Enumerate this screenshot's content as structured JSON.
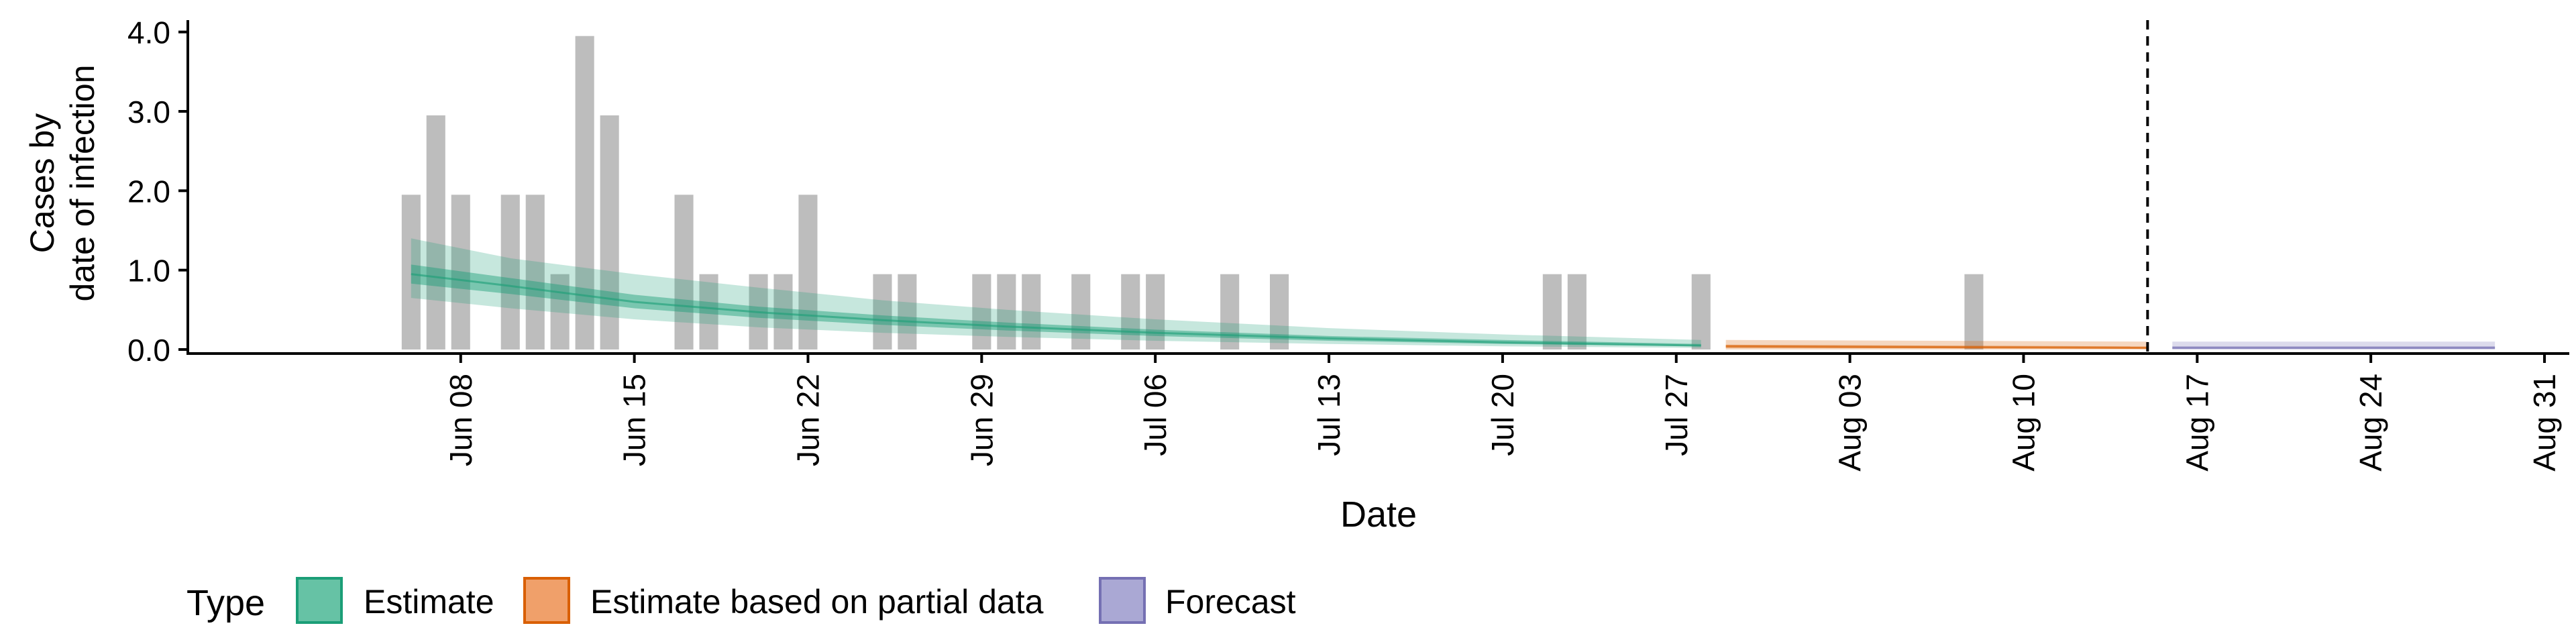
{
  "chart_data": {
    "type": "bar",
    "xlabel": "Date",
    "ylabel_lines": [
      "Cases by",
      "date of infection"
    ],
    "ylim": [
      0,
      4.2
    ],
    "yticks": [
      0,
      1,
      2,
      3,
      4
    ],
    "ytick_labels": [
      "0.0",
      "1.0",
      "2.0",
      "3.0",
      "4.0"
    ],
    "xlim": [
      "2020-05-28",
      "2020-09-01"
    ],
    "xticks": [
      "2020-06-08",
      "2020-06-15",
      "2020-06-22",
      "2020-06-29",
      "2020-07-06",
      "2020-07-13",
      "2020-07-20",
      "2020-07-27",
      "2020-08-03",
      "2020-08-10",
      "2020-08-17",
      "2020-08-24",
      "2020-08-31"
    ],
    "xtick_labels": [
      "Jun 08",
      "Jun 15",
      "Jun 22",
      "Jun 29",
      "Jul 06",
      "Jul 13",
      "Jul 20",
      "Jul 27",
      "Aug 03",
      "Aug 10",
      "Aug 17",
      "Aug 24",
      "Aug 31"
    ],
    "grid": false,
    "forecast_cutoff": "2020-08-15",
    "bar_color": "#bdbdbd",
    "cases": [
      {
        "date": "2020-06-06",
        "value": 2
      },
      {
        "date": "2020-06-07",
        "value": 3
      },
      {
        "date": "2020-06-08",
        "value": 2
      },
      {
        "date": "2020-06-10",
        "value": 2
      },
      {
        "date": "2020-06-11",
        "value": 2
      },
      {
        "date": "2020-06-12",
        "value": 1
      },
      {
        "date": "2020-06-13",
        "value": 4
      },
      {
        "date": "2020-06-14",
        "value": 3
      },
      {
        "date": "2020-06-17",
        "value": 2
      },
      {
        "date": "2020-06-18",
        "value": 1
      },
      {
        "date": "2020-06-20",
        "value": 1
      },
      {
        "date": "2020-06-21",
        "value": 1
      },
      {
        "date": "2020-06-22",
        "value": 2
      },
      {
        "date": "2020-06-25",
        "value": 1
      },
      {
        "date": "2020-06-26",
        "value": 1
      },
      {
        "date": "2020-06-29",
        "value": 1
      },
      {
        "date": "2020-06-30",
        "value": 1
      },
      {
        "date": "2020-07-01",
        "value": 1
      },
      {
        "date": "2020-07-03",
        "value": 1
      },
      {
        "date": "2020-07-05",
        "value": 1
      },
      {
        "date": "2020-07-06",
        "value": 1
      },
      {
        "date": "2020-07-09",
        "value": 1
      },
      {
        "date": "2020-07-11",
        "value": 1
      },
      {
        "date": "2020-07-22",
        "value": 1
      },
      {
        "date": "2020-07-23",
        "value": 1
      },
      {
        "date": "2020-07-28",
        "value": 1
      },
      {
        "date": "2020-08-08",
        "value": 1
      }
    ],
    "series": [
      {
        "name": "Estimate",
        "color": "#1b9e77",
        "points": [
          {
            "date": "2020-06-06",
            "median": 0.95,
            "lo50": 0.83,
            "hi50": 1.07,
            "lo90": 0.65,
            "hi90": 1.4
          },
          {
            "date": "2020-06-10",
            "median": 0.8,
            "lo50": 0.7,
            "hi50": 0.9,
            "lo90": 0.52,
            "hi90": 1.15
          },
          {
            "date": "2020-06-15",
            "median": 0.6,
            "lo50": 0.52,
            "hi50": 0.69,
            "lo90": 0.38,
            "hi90": 0.95
          },
          {
            "date": "2020-06-20",
            "median": 0.47,
            "lo50": 0.4,
            "hi50": 0.54,
            "lo90": 0.28,
            "hi90": 0.78
          },
          {
            "date": "2020-06-25",
            "median": 0.37,
            "lo50": 0.31,
            "hi50": 0.43,
            "lo90": 0.21,
            "hi90": 0.62
          },
          {
            "date": "2020-06-30",
            "median": 0.29,
            "lo50": 0.24,
            "hi50": 0.34,
            "lo90": 0.16,
            "hi90": 0.5
          },
          {
            "date": "2020-07-06",
            "median": 0.21,
            "lo50": 0.17,
            "hi50": 0.25,
            "lo90": 0.11,
            "hi90": 0.38
          },
          {
            "date": "2020-07-13",
            "median": 0.14,
            "lo50": 0.11,
            "hi50": 0.17,
            "lo90": 0.07,
            "hi90": 0.27
          },
          {
            "date": "2020-07-20",
            "median": 0.09,
            "lo50": 0.07,
            "hi50": 0.12,
            "lo90": 0.04,
            "hi90": 0.19
          },
          {
            "date": "2020-07-28",
            "median": 0.05,
            "lo50": 0.04,
            "hi50": 0.07,
            "lo90": 0.02,
            "hi90": 0.12
          }
        ]
      },
      {
        "name": "Estimate based on partial data",
        "color": "#d95f02",
        "points": [
          {
            "date": "2020-07-29",
            "median": 0.04,
            "lo50": 0.02,
            "hi50": 0.06,
            "lo90": 0.0,
            "hi90": 0.12
          },
          {
            "date": "2020-08-15",
            "median": 0.02,
            "lo50": 0.01,
            "hi50": 0.04,
            "lo90": 0.0,
            "hi90": 0.1
          }
        ]
      },
      {
        "name": "Forecast",
        "color": "#7570b3",
        "points": [
          {
            "date": "2020-08-16",
            "median": 0.02,
            "lo50": 0.01,
            "hi50": 0.04,
            "lo90": 0.0,
            "hi90": 0.1
          },
          {
            "date": "2020-08-29",
            "median": 0.02,
            "lo50": 0.01,
            "hi50": 0.04,
            "lo90": 0.0,
            "hi90": 0.1
          }
        ]
      }
    ],
    "legend": {
      "title": "Type",
      "placement": "bottom",
      "items": [
        "Estimate",
        "Estimate based on partial data",
        "Forecast"
      ]
    }
  }
}
